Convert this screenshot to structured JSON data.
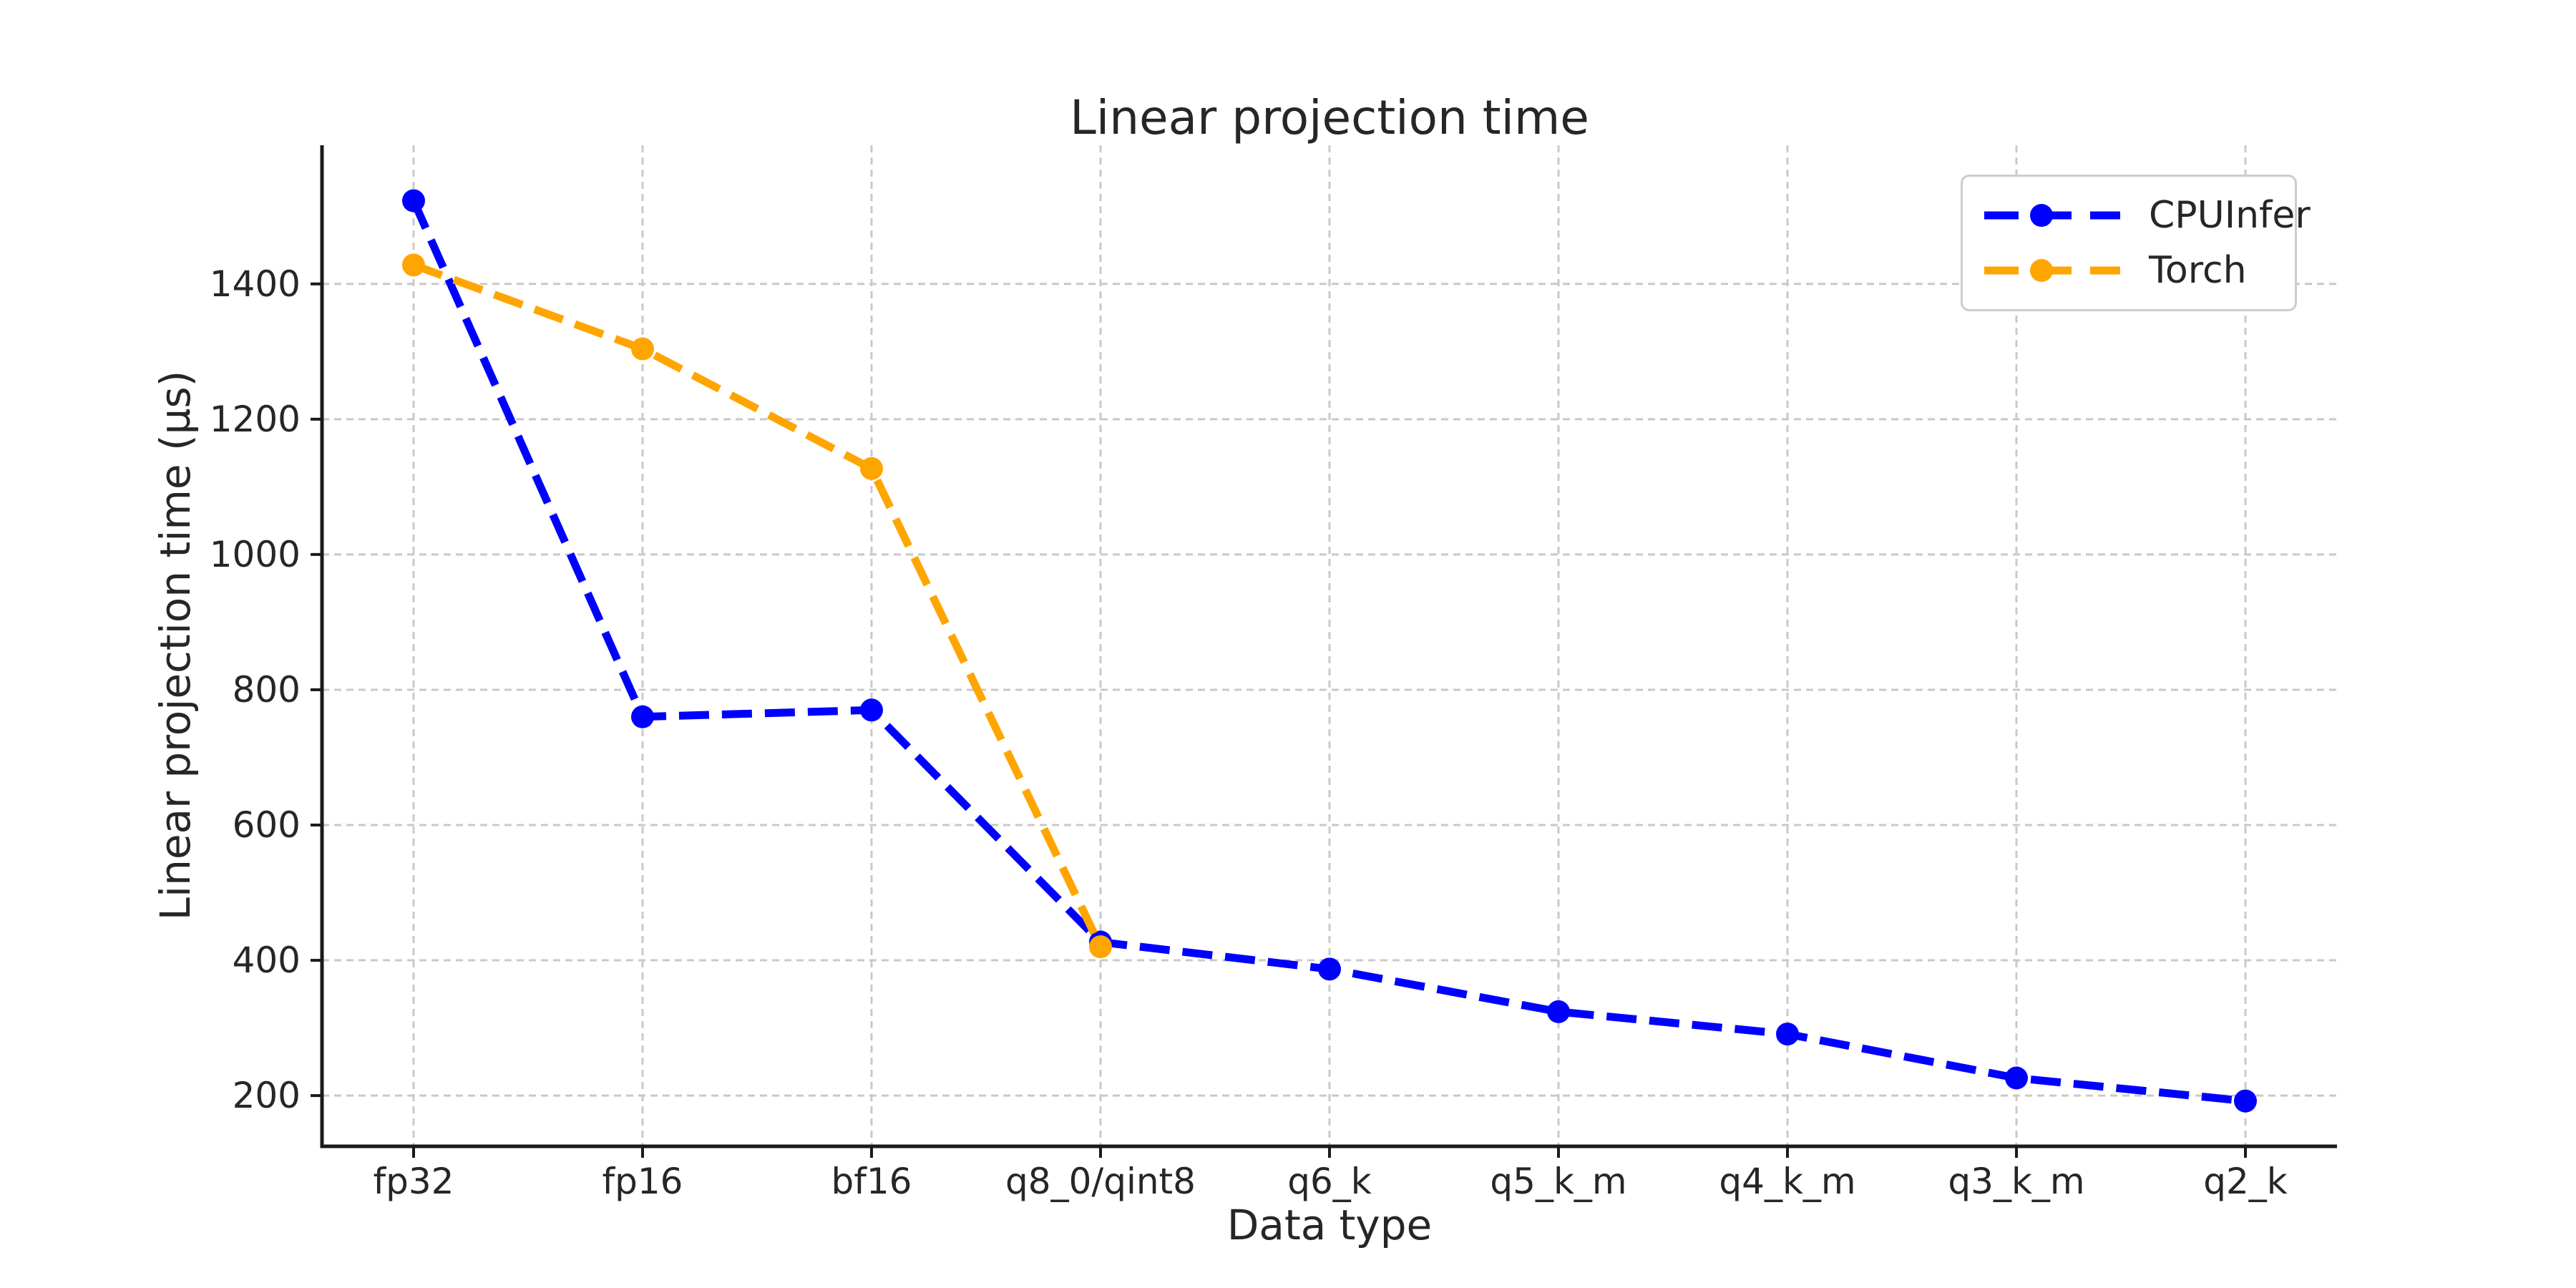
{
  "chart_data": {
    "type": "line",
    "title": "Linear projection time",
    "xlabel": "Data type",
    "ylabel": "Linear projection time (µs)",
    "categories": [
      "fp32",
      "fp16",
      "bf16",
      "q8_0/qint8",
      "q6_k",
      "q5_k_m",
      "q4_k_m",
      "q3_k_m",
      "q2_k"
    ],
    "series": [
      {
        "name": "CPUInfer",
        "color": "#0000ff",
        "values": [
          1523,
          760,
          770,
          427,
          387,
          324,
          291,
          226,
          192
        ]
      },
      {
        "name": "Torch",
        "color": "#ffa500",
        "values": [
          1428,
          1304,
          1127,
          420,
          null,
          null,
          null,
          null,
          null
        ]
      }
    ],
    "yticks": [
      200,
      400,
      600,
      800,
      1000,
      1200,
      1400
    ],
    "ylim": [
      125,
      1605
    ],
    "grid": true,
    "line_style": "dashed",
    "marker": "circle",
    "legend_position": "upper right"
  },
  "style": {
    "background": "#ffffff",
    "grid_color": "#c9c9c9",
    "spine_color": "#1a1a1a",
    "text_color": "#262626",
    "legend_border": "#cccccc"
  }
}
